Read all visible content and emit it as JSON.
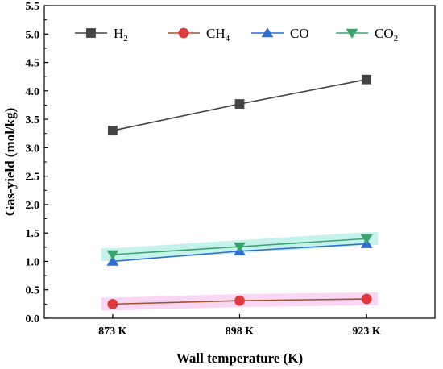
{
  "chart_data": {
    "type": "line",
    "categories": [
      "873 K",
      "898 K",
      "923 K"
    ],
    "xlabel": "Wall temperature (K)",
    "ylabel": "Gas-yield (mol/kg)",
    "ylim": [
      0.0,
      5.5
    ],
    "yticks": [
      "0.0",
      "0.5",
      "1.0",
      "1.5",
      "2.0",
      "2.5",
      "3.0",
      "3.5",
      "4.0",
      "4.5",
      "5.0",
      "5.5"
    ],
    "grid": false,
    "legend_position": "top",
    "series": [
      {
        "name": "H2",
        "label_main": "H",
        "label_sub": "2",
        "marker": "square",
        "color": "#444444",
        "line_color": "#444444",
        "values": [
          3.3,
          3.77,
          4.2
        ]
      },
      {
        "name": "CH4",
        "label_main": "CH",
        "label_sub": "4",
        "marker": "circle",
        "color": "#e0393e",
        "line_color": "#a0522d",
        "values": [
          0.25,
          0.31,
          0.34
        ]
      },
      {
        "name": "CO",
        "label_main": "CO",
        "label_sub": "",
        "marker": "triangle-up",
        "color": "#2f6fd1",
        "line_color": "#2f6fd1",
        "values": [
          1.0,
          1.18,
          1.31
        ]
      },
      {
        "name": "CO2",
        "label_main": "CO",
        "label_sub": "2",
        "marker": "triangle-down",
        "color": "#3aa56a",
        "line_color": "#3aa56a",
        "values": [
          1.12,
          1.26,
          1.4
        ]
      }
    ]
  }
}
